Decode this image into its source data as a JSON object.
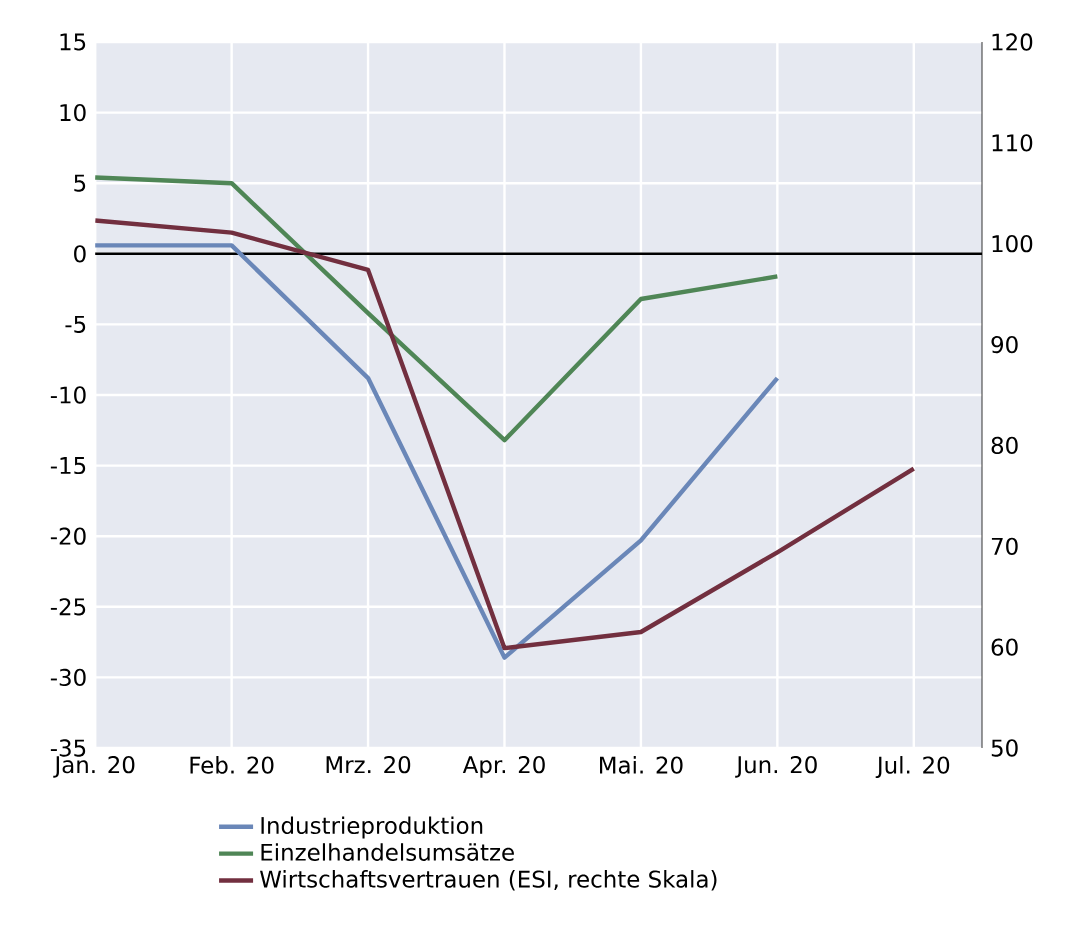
{
  "chart_data": {
    "type": "line",
    "categories": [
      "Jan. 20",
      "Feb. 20",
      "Mrz. 20",
      "Apr. 20",
      "Mai. 20",
      "Jun. 20",
      "Jul. 20"
    ],
    "series": [
      {
        "name": "Industrieproduktion",
        "color": "#6a87b8",
        "values": [
          0.6,
          0.6,
          -8.8,
          -28.6,
          -20.3,
          -8.8,
          null
        ]
      },
      {
        "name": "Einzelhandelsumsätze",
        "color": "#4f8656",
        "values": [
          5.4,
          5.0,
          -4.2,
          -13.2,
          -3.2,
          -1.6,
          null
        ]
      },
      {
        "name": "Wirtschaftsvertrauen (ESI, rechte Skala)",
        "color": "#722f3f",
        "axis": "y2",
        "values": [
          102.3,
          101.1,
          97.4,
          59.9,
          61.5,
          69.4,
          77.7
        ]
      }
    ],
    "ylim": [
      -35,
      15
    ],
    "yticks": [
      -35,
      -30,
      -25,
      -20,
      -15,
      -10,
      -5,
      0,
      5,
      10,
      15
    ],
    "y2lim": [
      50,
      120
    ],
    "y2ticks": [
      50,
      60,
      70,
      80,
      90,
      100,
      110,
      120
    ],
    "ref_lines": [
      {
        "axis": "y",
        "value": 0,
        "color": "#000000"
      }
    ],
    "grid": true,
    "legend": "bottom"
  }
}
